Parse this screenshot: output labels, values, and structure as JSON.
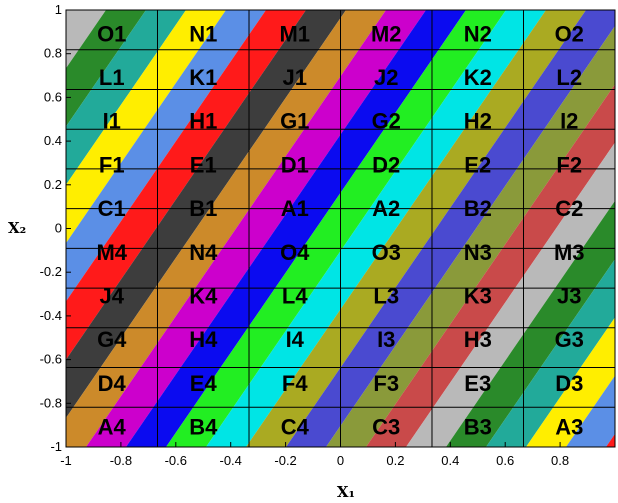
{
  "chart_data": {
    "type": "heatmap",
    "title": "",
    "xlabel": "X₁",
    "ylabel": "X₂",
    "xlim": [
      -1,
      1
    ],
    "ylim": [
      -1,
      1
    ],
    "grid": true,
    "x_ticks": [
      -1,
      -0.8,
      -0.6,
      -0.4,
      -0.2,
      0,
      0.2,
      0.4,
      0.6,
      0.8
    ],
    "x_tick_labels": [
      "-1",
      "-0.8",
      "-0.6",
      "-0.4",
      "-0.2",
      "0",
      "0.2",
      "0.4",
      "0.6",
      "0.8"
    ],
    "y_ticks": [
      -1,
      -0.8,
      -0.6,
      -0.4,
      -0.2,
      0,
      0.2,
      0.4,
      0.6,
      0.8,
      1
    ],
    "y_tick_labels": [
      "-1",
      "-0.8",
      "-0.6",
      "-0.4",
      "-0.2",
      "0",
      "0.2",
      "0.4",
      "0.6",
      "0.8",
      "1"
    ],
    "grid_columns": [
      -1,
      -0.6667,
      -0.3333,
      0,
      0.3333,
      0.6667,
      1
    ],
    "grid_rows": [
      1,
      0.8182,
      0.6364,
      0.4545,
      0.2727,
      0.0909,
      -0.0909,
      -0.2727,
      -0.4545,
      -0.6364,
      -0.8182,
      -1
    ],
    "cell_labels": [
      [
        "O1",
        "N1",
        "M1",
        "M2",
        "N2",
        "O2"
      ],
      [
        "L1",
        "K1",
        "J1",
        "J2",
        "K2",
        "L2"
      ],
      [
        "I1",
        "H1",
        "G1",
        "G2",
        "H2",
        "I2"
      ],
      [
        "F1",
        "E1",
        "D1",
        "D2",
        "E2",
        "F2"
      ],
      [
        "C1",
        "B1",
        "A1",
        "A2",
        "B2",
        "C2"
      ],
      [
        "M4",
        "N4",
        "O4",
        "O3",
        "N3",
        "M3"
      ],
      [
        "J4",
        "K4",
        "L4",
        "L3",
        "K3",
        "J3"
      ],
      [
        "G4",
        "H4",
        "I4",
        "I3",
        "H3",
        "G3"
      ],
      [
        "D4",
        "E4",
        "F4",
        "F3",
        "E3",
        "D3"
      ],
      [
        "A4",
        "B4",
        "C4",
        "C3",
        "B3",
        "A3"
      ]
    ],
    "band_colors": [
      "#3d3d3d",
      "#4a4ad0",
      "#5b8fe6",
      "#00e5e5",
      "#22aa9a",
      "#0b0bf0",
      "#b9b9b9",
      "#cc8a2a",
      "#8a9a3a",
      "#ff1a1a",
      "#aaaa22",
      "#ffee00",
      "#22ee22",
      "#2a8a2a",
      "#cc00cc",
      "#c94a4a"
    ]
  }
}
